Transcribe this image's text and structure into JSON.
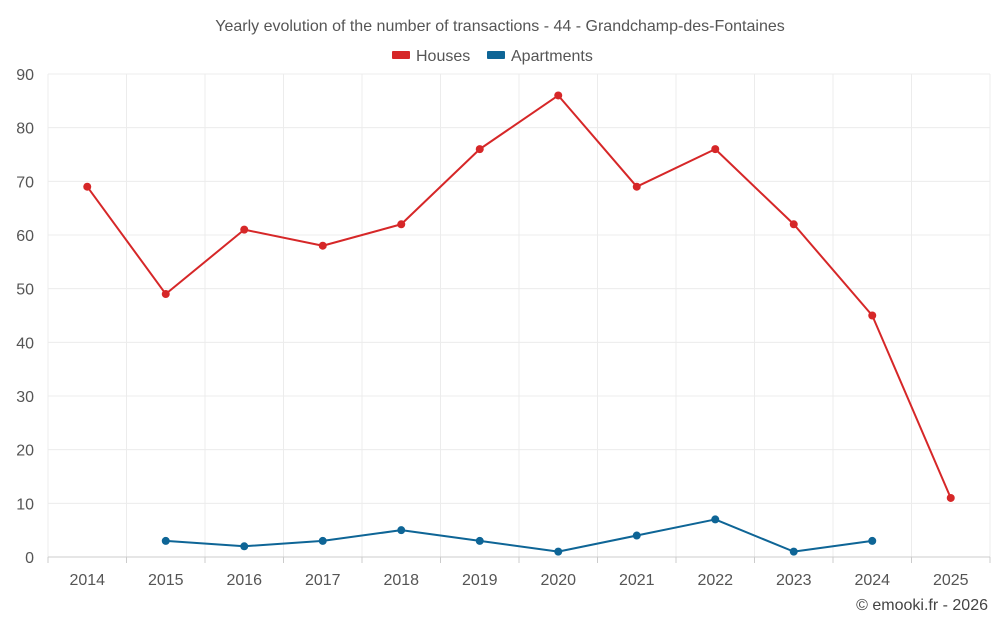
{
  "chart_data": {
    "type": "line",
    "title": "Yearly evolution of the number of transactions - 44 - Grandchamp-des-Fontaines",
    "categories": [
      "2014",
      "2015",
      "2016",
      "2017",
      "2018",
      "2019",
      "2020",
      "2021",
      "2022",
      "2023",
      "2024",
      "2025"
    ],
    "ylim": [
      0,
      90
    ],
    "yticks": [
      0,
      10,
      20,
      30,
      40,
      50,
      60,
      70,
      80,
      90
    ],
    "grid": true,
    "legend_position": "top-center",
    "series": [
      {
        "name": "Houses",
        "color": "#d62728",
        "values": [
          69,
          49,
          61,
          58,
          62,
          76,
          86,
          69,
          76,
          62,
          45,
          11
        ]
      },
      {
        "name": "Apartments",
        "color": "#0e6596",
        "values": [
          null,
          3,
          2,
          3,
          5,
          3,
          1,
          4,
          7,
          1,
          3,
          null
        ]
      }
    ],
    "credit": "© emooki.fr - 2026"
  }
}
